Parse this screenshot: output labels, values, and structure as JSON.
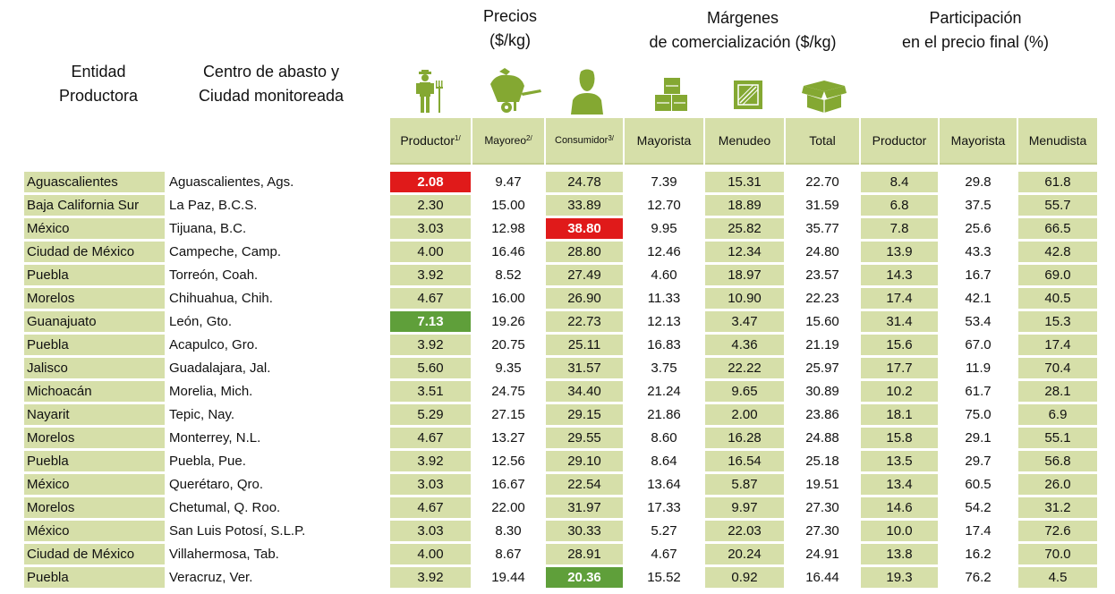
{
  "headers": {
    "entidad": [
      "Entidad",
      "Productora"
    ],
    "centro": [
      "Centro de abasto y",
      "Ciudad monitoreada"
    ],
    "precios": [
      "Precios",
      "($/kg)"
    ],
    "margenes": [
      "Márgenes",
      "de comercialización ($/kg)"
    ],
    "participacion": [
      "Participación",
      "en el precio final (%)"
    ]
  },
  "columns": {
    "productor": {
      "label": "Productor",
      "note": "1/"
    },
    "mayoreo": {
      "label": "Mayoreo",
      "note": "2/"
    },
    "consumidor": {
      "label": "Consumidor",
      "note": "3/"
    },
    "mayorista": "Mayorista",
    "menudeo": "Menudeo",
    "total": "Total",
    "part_productor": "Productor",
    "part_mayorista": "Mayorista",
    "part_menudista": "Menudista"
  },
  "icons": [
    "farmer-icon",
    "wheelbarrow-icon",
    "consumer-icon",
    "boxes-icon",
    "crate-icon",
    "open-box-icon"
  ],
  "colors": {
    "shade": "#d6dfa9",
    "highlight_max": "#e01a1a",
    "highlight_min": "#5f9f3a",
    "icon": "#84a832"
  },
  "rows": [
    {
      "entidad": "Aguascalientes",
      "ciudad": "Aguascalientes, Ags.",
      "productor": "2.08",
      "mayoreo": "9.47",
      "consumidor": "24.78",
      "mayorista": "7.39",
      "menudeo": "15.31",
      "total": "22.70",
      "p_productor": "8.4",
      "p_mayorista": "29.8",
      "p_menudista": "61.8",
      "hl_productor": "red",
      "hl_consumidor": ""
    },
    {
      "entidad": "Baja California Sur",
      "ciudad": "La Paz, B.C.S.",
      "productor": "2.30",
      "mayoreo": "15.00",
      "consumidor": "33.89",
      "mayorista": "12.70",
      "menudeo": "18.89",
      "total": "31.59",
      "p_productor": "6.8",
      "p_mayorista": "37.5",
      "p_menudista": "55.7",
      "hl_productor": "",
      "hl_consumidor": ""
    },
    {
      "entidad": "México",
      "ciudad": "Tijuana, B.C.",
      "productor": "3.03",
      "mayoreo": "12.98",
      "consumidor": "38.80",
      "mayorista": "9.95",
      "menudeo": "25.82",
      "total": "35.77",
      "p_productor": "7.8",
      "p_mayorista": "25.6",
      "p_menudista": "66.5",
      "hl_productor": "",
      "hl_consumidor": "red"
    },
    {
      "entidad": "Ciudad de México",
      "ciudad": "Campeche, Camp.",
      "productor": "4.00",
      "mayoreo": "16.46",
      "consumidor": "28.80",
      "mayorista": "12.46",
      "menudeo": "12.34",
      "total": "24.80",
      "p_productor": "13.9",
      "p_mayorista": "43.3",
      "p_menudista": "42.8",
      "hl_productor": "",
      "hl_consumidor": ""
    },
    {
      "entidad": "Puebla",
      "ciudad": "Torreón, Coah.",
      "productor": "3.92",
      "mayoreo": "8.52",
      "consumidor": "27.49",
      "mayorista": "4.60",
      "menudeo": "18.97",
      "total": "23.57",
      "p_productor": "14.3",
      "p_mayorista": "16.7",
      "p_menudista": "69.0",
      "hl_productor": "",
      "hl_consumidor": ""
    },
    {
      "entidad": "Morelos",
      "ciudad": "Chihuahua, Chih.",
      "productor": "4.67",
      "mayoreo": "16.00",
      "consumidor": "26.90",
      "mayorista": "11.33",
      "menudeo": "10.90",
      "total": "22.23",
      "p_productor": "17.4",
      "p_mayorista": "42.1",
      "p_menudista": "40.5",
      "hl_productor": "",
      "hl_consumidor": ""
    },
    {
      "entidad": "Guanajuato",
      "ciudad": "León, Gto.",
      "productor": "7.13",
      "mayoreo": "19.26",
      "consumidor": "22.73",
      "mayorista": "12.13",
      "menudeo": "3.47",
      "total": "15.60",
      "p_productor": "31.4",
      "p_mayorista": "53.4",
      "p_menudista": "15.3",
      "hl_productor": "green",
      "hl_consumidor": ""
    },
    {
      "entidad": "Puebla",
      "ciudad": "Acapulco, Gro.",
      "productor": "3.92",
      "mayoreo": "20.75",
      "consumidor": "25.11",
      "mayorista": "16.83",
      "menudeo": "4.36",
      "total": "21.19",
      "p_productor": "15.6",
      "p_mayorista": "67.0",
      "p_menudista": "17.4",
      "hl_productor": "",
      "hl_consumidor": ""
    },
    {
      "entidad": "Jalisco",
      "ciudad": "Guadalajara, Jal.",
      "productor": "5.60",
      "mayoreo": "9.35",
      "consumidor": "31.57",
      "mayorista": "3.75",
      "menudeo": "22.22",
      "total": "25.97",
      "p_productor": "17.7",
      "p_mayorista": "11.9",
      "p_menudista": "70.4",
      "hl_productor": "",
      "hl_consumidor": ""
    },
    {
      "entidad": "Michoacán",
      "ciudad": "Morelia, Mich.",
      "productor": "3.51",
      "mayoreo": "24.75",
      "consumidor": "34.40",
      "mayorista": "21.24",
      "menudeo": "9.65",
      "total": "30.89",
      "p_productor": "10.2",
      "p_mayorista": "61.7",
      "p_menudista": "28.1",
      "hl_productor": "",
      "hl_consumidor": ""
    },
    {
      "entidad": "Nayarit",
      "ciudad": "Tepic, Nay.",
      "productor": "5.29",
      "mayoreo": "27.15",
      "consumidor": "29.15",
      "mayorista": "21.86",
      "menudeo": "2.00",
      "total": "23.86",
      "p_productor": "18.1",
      "p_mayorista": "75.0",
      "p_menudista": "6.9",
      "hl_productor": "",
      "hl_consumidor": ""
    },
    {
      "entidad": "Morelos",
      "ciudad": "Monterrey, N.L.",
      "productor": "4.67",
      "mayoreo": "13.27",
      "consumidor": "29.55",
      "mayorista": "8.60",
      "menudeo": "16.28",
      "total": "24.88",
      "p_productor": "15.8",
      "p_mayorista": "29.1",
      "p_menudista": "55.1",
      "hl_productor": "",
      "hl_consumidor": ""
    },
    {
      "entidad": "Puebla",
      "ciudad": "Puebla, Pue.",
      "productor": "3.92",
      "mayoreo": "12.56",
      "consumidor": "29.10",
      "mayorista": "8.64",
      "menudeo": "16.54",
      "total": "25.18",
      "p_productor": "13.5",
      "p_mayorista": "29.7",
      "p_menudista": "56.8",
      "hl_productor": "",
      "hl_consumidor": ""
    },
    {
      "entidad": "México",
      "ciudad": "Querétaro, Qro.",
      "productor": "3.03",
      "mayoreo": "16.67",
      "consumidor": "22.54",
      "mayorista": "13.64",
      "menudeo": "5.87",
      "total": "19.51",
      "p_productor": "13.4",
      "p_mayorista": "60.5",
      "p_menudista": "26.0",
      "hl_productor": "",
      "hl_consumidor": ""
    },
    {
      "entidad": "Morelos",
      "ciudad": "Chetumal, Q. Roo.",
      "productor": "4.67",
      "mayoreo": "22.00",
      "consumidor": "31.97",
      "mayorista": "17.33",
      "menudeo": "9.97",
      "total": "27.30",
      "p_productor": "14.6",
      "p_mayorista": "54.2",
      "p_menudista": "31.2",
      "hl_productor": "",
      "hl_consumidor": ""
    },
    {
      "entidad": "México",
      "ciudad": "San Luis Potosí, S.L.P.",
      "productor": "3.03",
      "mayoreo": "8.30",
      "consumidor": "30.33",
      "mayorista": "5.27",
      "menudeo": "22.03",
      "total": "27.30",
      "p_productor": "10.0",
      "p_mayorista": "17.4",
      "p_menudista": "72.6",
      "hl_productor": "",
      "hl_consumidor": ""
    },
    {
      "entidad": "Ciudad de México",
      "ciudad": "Villahermosa, Tab.",
      "productor": "4.00",
      "mayoreo": "8.67",
      "consumidor": "28.91",
      "mayorista": "4.67",
      "menudeo": "20.24",
      "total": "24.91",
      "p_productor": "13.8",
      "p_mayorista": "16.2",
      "p_menudista": "70.0",
      "hl_productor": "",
      "hl_consumidor": ""
    },
    {
      "entidad": "Puebla",
      "ciudad": "Veracruz, Ver.",
      "productor": "3.92",
      "mayoreo": "19.44",
      "consumidor": "20.36",
      "mayorista": "15.52",
      "menudeo": "0.92",
      "total": "16.44",
      "p_productor": "19.3",
      "p_mayorista": "76.2",
      "p_menudista": "4.5",
      "hl_productor": "",
      "hl_consumidor": "green"
    }
  ]
}
